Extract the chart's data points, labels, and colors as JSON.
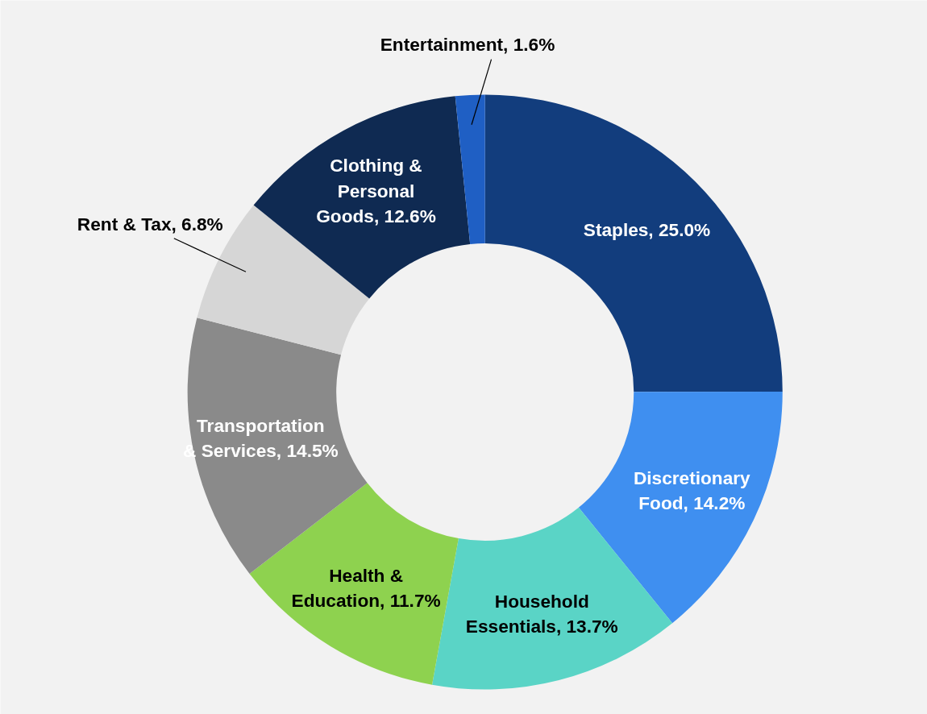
{
  "chart_data": {
    "type": "donut",
    "categories": [
      "Staples",
      "Discretionary Food",
      "Household Essentials",
      "Health & Education",
      "Transportation & Services",
      "Rent & Tax",
      "Clothing & Personal Goods",
      "Entertainment"
    ],
    "values": [
      25.0,
      14.2,
      13.7,
      11.7,
      14.5,
      6.8,
      12.6,
      1.6
    ],
    "value_labels": [
      "25.0%",
      "14.2%",
      "13.7%",
      "11.7%",
      "14.5%",
      "6.8%",
      "12.6%",
      "1.6%"
    ],
    "colors": [
      "#123d7d",
      "#3f8ff0",
      "#5ad4c6",
      "#8ed24f",
      "#8a8a8a",
      "#d6d6d6",
      "#0f2a52",
      "#1f5fc4"
    ]
  }
}
